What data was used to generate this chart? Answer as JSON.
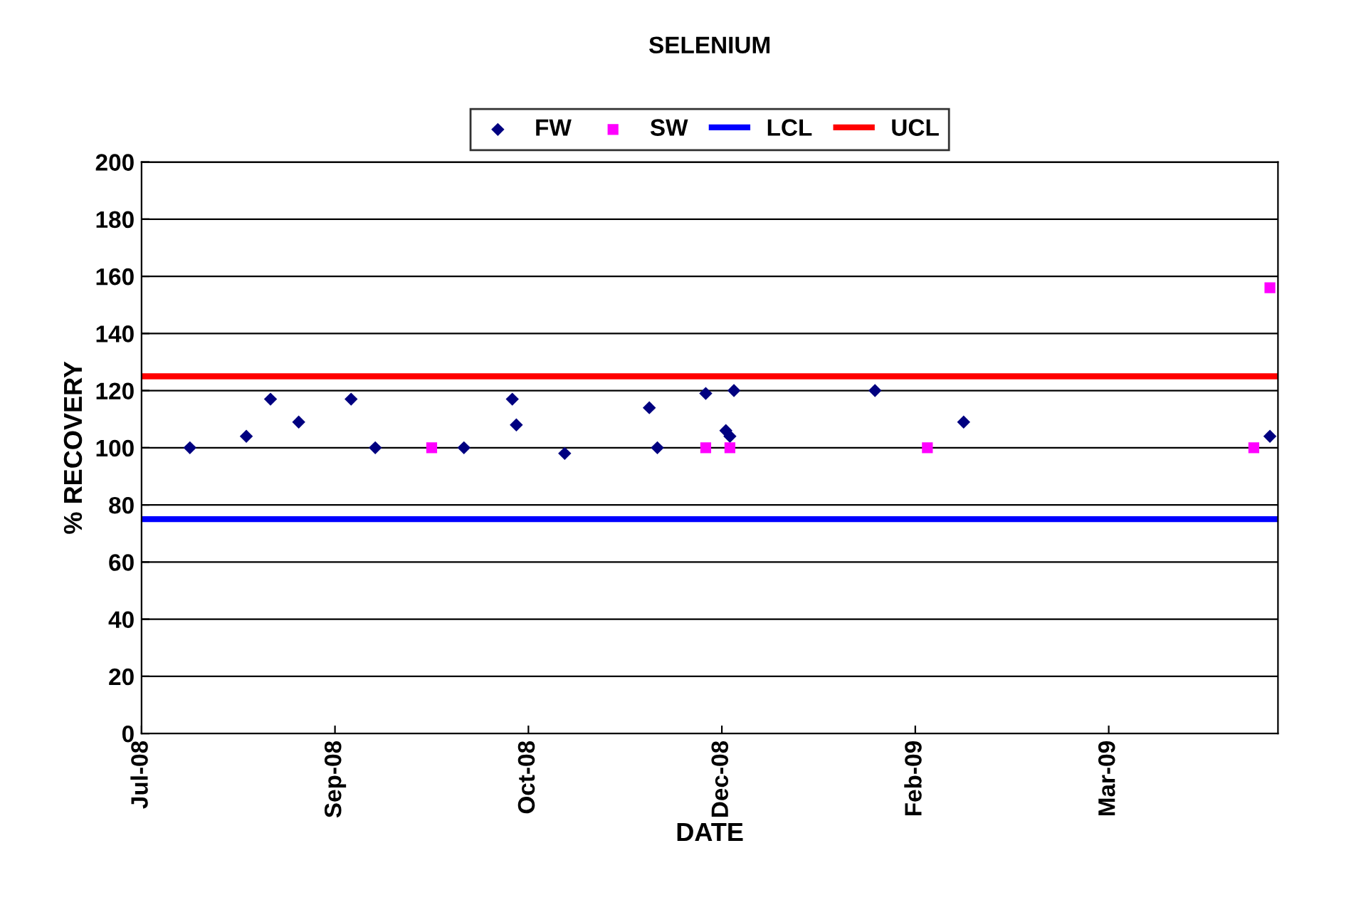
{
  "chart_data": {
    "type": "scatter",
    "title": "SELENIUM",
    "xlabel": "DATE",
    "ylabel": "% RECOVERY",
    "xlim": [
      "2008-07-26",
      "2009-05-04"
    ],
    "xticks": [
      {
        "value": "2008-07-26",
        "label": "Jul-08"
      },
      {
        "value": "2008-09-12",
        "label": "Sep-08"
      },
      {
        "value": "2008-10-30",
        "label": "Oct-08"
      },
      {
        "value": "2008-12-17",
        "label": "Dec-08"
      },
      {
        "value": "2009-02-03",
        "label": "Feb-09"
      },
      {
        "value": "2009-03-23",
        "label": "Mar-09"
      }
    ],
    "ylim": [
      0,
      200
    ],
    "yticks": [
      0,
      20,
      40,
      60,
      80,
      100,
      120,
      140,
      160,
      180,
      200
    ],
    "grid": "y",
    "legend": "top",
    "series": [
      {
        "name": "FW",
        "marker": "diamond",
        "color": "#000080",
        "x": [
          "2008-08-07",
          "2008-08-21",
          "2008-08-27",
          "2008-09-03",
          "2008-09-16",
          "2008-09-22",
          "2008-10-14",
          "2008-10-26",
          "2008-10-27",
          "2008-11-08",
          "2008-11-29",
          "2008-12-01",
          "2008-12-13",
          "2008-12-18",
          "2008-12-19",
          "2008-12-20",
          "2009-01-24",
          "2009-02-15",
          "2009-05-02"
        ],
        "values": [
          100,
          104,
          117,
          109,
          117,
          100,
          100,
          117,
          108,
          98,
          114,
          100,
          119,
          106,
          104,
          120,
          120,
          109,
          104
        ]
      },
      {
        "name": "SW",
        "marker": "square",
        "color": "#ff00ff",
        "x": [
          "2008-10-06",
          "2008-12-13",
          "2008-12-19",
          "2009-02-06",
          "2009-04-28",
          "2009-05-02"
        ],
        "values": [
          100,
          100,
          100,
          100,
          100,
          156
        ]
      },
      {
        "name": "LCL",
        "type": "line",
        "marker": "none",
        "color": "#0000ff",
        "x": [
          "2008-07-26",
          "2009-05-04"
        ],
        "values": [
          75,
          75
        ]
      },
      {
        "name": "UCL",
        "type": "line",
        "marker": "none",
        "color": "#ff0000",
        "x": [
          "2008-07-26",
          "2009-05-04"
        ],
        "values": [
          125,
          125
        ]
      }
    ]
  }
}
